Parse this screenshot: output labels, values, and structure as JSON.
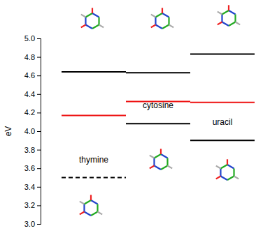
{
  "chart_data": {
    "type": "level",
    "y_label": "eV",
    "categories": [
      "thymine",
      "cytosine",
      "uracil"
    ],
    "series": [
      {
        "color": "#000000",
        "line_style": "dashed",
        "values": [
          3.5,
          null,
          null
        ]
      },
      {
        "color": "#000000",
        "line_style": "solid",
        "values": [
          null,
          4.08,
          3.9
        ]
      },
      {
        "color": "#ee1111",
        "line_style": "solid",
        "values": [
          4.17,
          4.32,
          4.31
        ]
      },
      {
        "color": "#000000",
        "line_style": "solid",
        "values": [
          4.64,
          4.63,
          4.83
        ]
      }
    ],
    "ylim": [
      3.0,
      5.0
    ],
    "yticks": [
      {
        "value": 3.0,
        "label": "3.0"
      },
      3.2,
      3.4,
      3.6,
      3.8,
      {
        "value": 4.0,
        "label": "4.0"
      },
      4.2,
      4.4,
      4.6,
      4.8,
      {
        "value": 5.0,
        "label": "5.0"
      }
    ],
    "tick_labels": "y",
    "grid": false
  }
}
